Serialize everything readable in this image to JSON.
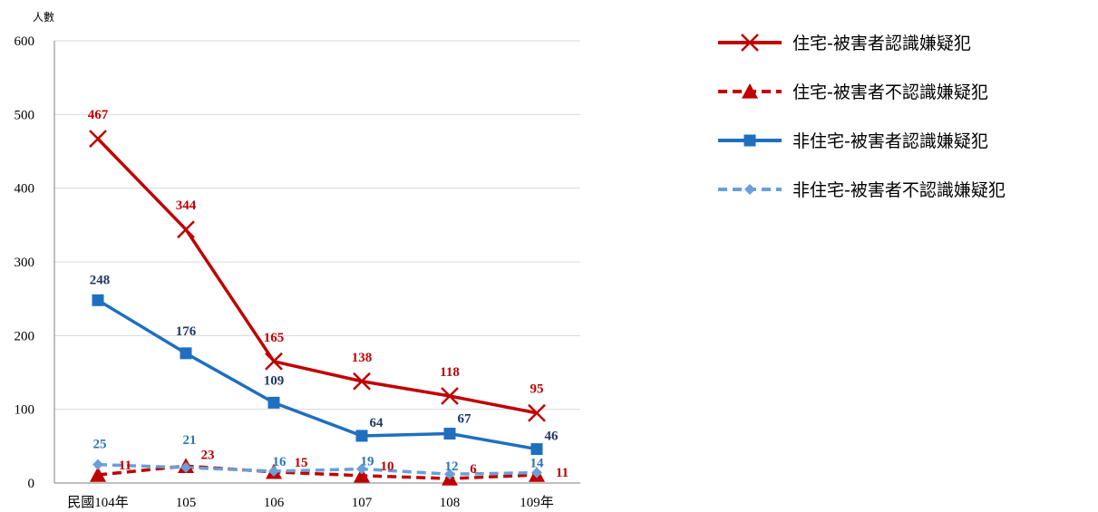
{
  "chart_data": {
    "type": "line",
    "ylabel": "人數",
    "ylim": [
      0,
      600
    ],
    "yticks": [
      0,
      100,
      200,
      300,
      400,
      500,
      600
    ],
    "categories": [
      "民國104年",
      "105",
      "106",
      "107",
      "108",
      "109年"
    ],
    "grid": true,
    "legend_position": "right",
    "series": [
      {
        "name": "住宅-被害者認識嫌疑犯",
        "values": [
          467,
          344,
          165,
          138,
          118,
          95
        ],
        "color": "#c00000",
        "label_color": "#c00000",
        "marker": "x",
        "dash": false
      },
      {
        "name": "住宅-被害者不認識嫌疑犯",
        "values": [
          11,
          23,
          15,
          10,
          6,
          11
        ],
        "color": "#c00000",
        "label_color": "#c00000",
        "marker": "triangle",
        "dash": true
      },
      {
        "name": "非住宅-被害者認識嫌疑犯",
        "values": [
          248,
          176,
          109,
          64,
          67,
          46
        ],
        "color": "#1f6fbf",
        "label_color": "#1f3864",
        "marker": "square",
        "dash": false
      },
      {
        "name": "非住宅-被害者不認識嫌疑犯",
        "values": [
          25,
          21,
          16,
          19,
          12,
          14
        ],
        "color": "#6a9fd8",
        "label_color": "#2e75b6",
        "marker": "diamond",
        "dash": true
      }
    ]
  }
}
